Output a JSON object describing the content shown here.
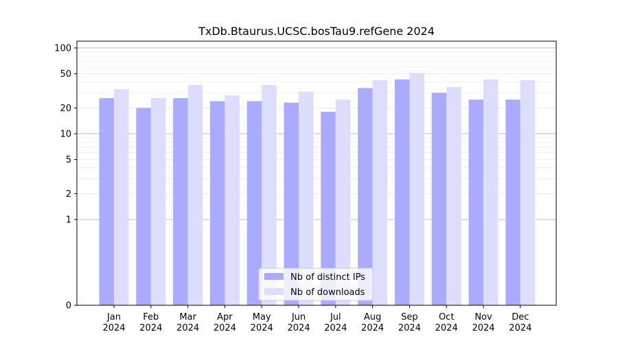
{
  "chart_data": {
    "type": "bar",
    "title": "TxDb.Btaurus.UCSC.bosTau9.refGene 2024",
    "xlabel": "",
    "ylabel": "",
    "y_scale": "symlog",
    "ylim": [
      0,
      120
    ],
    "y_ticks": [
      0,
      1,
      2,
      5,
      10,
      20,
      50,
      100
    ],
    "grid": "y-major-and-minor",
    "legend_position": "bottom-center",
    "categories": [
      [
        "Jan",
        "2024"
      ],
      [
        "Feb",
        "2024"
      ],
      [
        "Mar",
        "2024"
      ],
      [
        "Apr",
        "2024"
      ],
      [
        "May",
        "2024"
      ],
      [
        "Jun",
        "2024"
      ],
      [
        "Jul",
        "2024"
      ],
      [
        "Aug",
        "2024"
      ],
      [
        "Sep",
        "2024"
      ],
      [
        "Oct",
        "2024"
      ],
      [
        "Nov",
        "2024"
      ],
      [
        "Dec",
        "2024"
      ]
    ],
    "series": [
      {
        "name": "Nb of distinct IPs",
        "color": "#aaaaff",
        "values": [
          26,
          20,
          26,
          24,
          24,
          23,
          18,
          34,
          43,
          30,
          25,
          25
        ]
      },
      {
        "name": "Nb of downloads",
        "color": "#ddddff",
        "values": [
          33,
          26,
          37,
          28,
          37,
          31,
          25,
          42,
          51,
          35,
          43,
          42
        ]
      }
    ]
  }
}
